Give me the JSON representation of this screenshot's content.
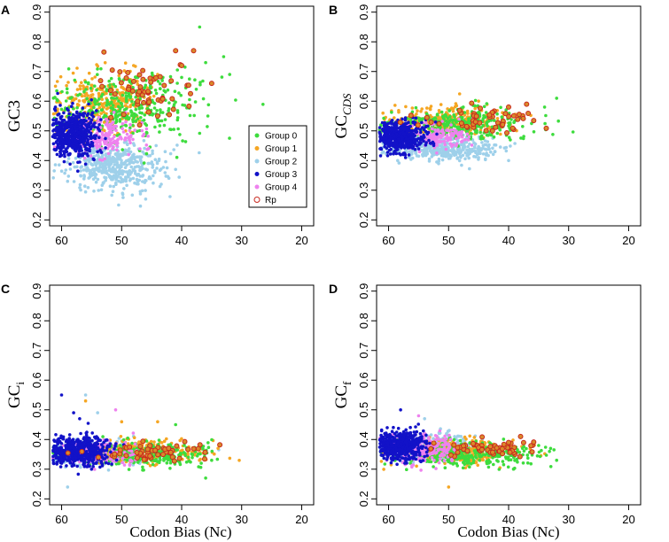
{
  "colors": {
    "Group 0": "#3ddc3d",
    "Group 1": "#f5a623",
    "Group 2": "#9ed0ea",
    "Group 3": "#1212c8",
    "Group 4": "#ee82ee",
    "Rp": "#c8281e"
  },
  "legend": {
    "entries": [
      "Group 0",
      "Group 1",
      "Group 2",
      "Group 3",
      "Group 4",
      "Rp"
    ],
    "placement": "bottom-right of panel A"
  },
  "x_axis_label": "Codon Bias (Nc)",
  "chart_data": [
    {
      "panel": "A",
      "type": "scatter",
      "ylabel": "GC3",
      "ylabel_sub": "",
      "xlabel": "",
      "xlim": [
        62,
        18
      ],
      "ylim": [
        0.18,
        0.92
      ],
      "xticks": [
        "60",
        "50",
        "40",
        "30",
        "20"
      ],
      "yticks": [
        "0.2",
        "0.3",
        "0.4",
        "0.5",
        "0.6",
        "0.7",
        "0.8",
        "0.9"
      ],
      "series": [
        {
          "group": "Group 2",
          "cloud": {
            "x_center": 51,
            "x_sd": 4,
            "y_center": 0.38,
            "y_sd": 0.04,
            "n": 450
          },
          "points": [
            [
              50.5,
              0.25
            ],
            [
              46,
              0.27
            ],
            [
              41,
              0.37
            ],
            [
              59,
              0.33
            ]
          ]
        },
        {
          "group": "Group 1",
          "cloud": {
            "x_center": 53,
            "x_sd": 4,
            "y_center": 0.59,
            "y_sd": 0.05,
            "n": 330
          },
          "points": [
            [
              48,
              0.72
            ],
            [
              44,
              0.69
            ],
            [
              50,
              0.66
            ]
          ]
        },
        {
          "group": "Group 0",
          "cloud": {
            "x_center": 49,
            "x_sd": 6,
            "y_center": 0.58,
            "y_sd": 0.06,
            "n": 360
          },
          "points": [
            [
              37,
              0.85
            ],
            [
              33,
              0.75
            ],
            [
              32,
              0.69
            ],
            [
              36,
              0.73
            ],
            [
              40,
              0.68
            ]
          ]
        },
        {
          "group": "Group 4",
          "cloud": {
            "x_center": 53,
            "x_sd": 3,
            "y_center": 0.48,
            "y_sd": 0.03,
            "n": 200
          },
          "points": []
        },
        {
          "group": "Group 3",
          "cloud": {
            "x_center": 58,
            "x_sd": 2,
            "y_center": 0.49,
            "y_sd": 0.04,
            "n": 520
          },
          "points": []
        },
        {
          "group": "Rp",
          "cloud": {
            "x_center": 46,
            "x_sd": 5,
            "y_center": 0.64,
            "y_sd": 0.05,
            "n": 55
          },
          "points": [
            [
              41,
              0.77
            ],
            [
              38,
              0.77
            ],
            [
              40,
              0.72
            ],
            [
              35,
              0.66
            ],
            [
              47,
              0.52
            ],
            [
              44,
              0.55
            ]
          ]
        }
      ]
    },
    {
      "panel": "B",
      "type": "scatter",
      "ylabel": "GC",
      "ylabel_sub": "CDS",
      "xlabel": "",
      "xlim": [
        62,
        18
      ],
      "ylim": [
        0.18,
        0.92
      ],
      "xticks": [
        "60",
        "50",
        "40",
        "30",
        "20"
      ],
      "yticks": [
        "0.2",
        "0.3",
        "0.4",
        "0.5",
        "0.6",
        "0.7",
        "0.8",
        "0.9"
      ],
      "series": [
        {
          "group": "Group 2",
          "cloud": {
            "x_center": 51,
            "x_sd": 4,
            "y_center": 0.44,
            "y_sd": 0.02,
            "n": 400
          },
          "points": [
            [
              40,
              0.4
            ],
            [
              45,
              0.41
            ]
          ]
        },
        {
          "group": "Group 1",
          "cloud": {
            "x_center": 51,
            "x_sd": 5,
            "y_center": 0.53,
            "y_sd": 0.025,
            "n": 300
          },
          "points": [
            [
              45,
              0.6
            ]
          ]
        },
        {
          "group": "Group 0",
          "cloud": {
            "x_center": 48,
            "x_sd": 6,
            "y_center": 0.52,
            "y_sd": 0.025,
            "n": 320
          },
          "points": [
            [
              32,
              0.61
            ],
            [
              34,
              0.58
            ]
          ]
        },
        {
          "group": "Group 4",
          "cloud": {
            "x_center": 53,
            "x_sd": 3,
            "y_center": 0.48,
            "y_sd": 0.02,
            "n": 180
          },
          "points": []
        },
        {
          "group": "Group 3",
          "cloud": {
            "x_center": 58,
            "x_sd": 2,
            "y_center": 0.48,
            "y_sd": 0.025,
            "n": 500
          },
          "points": []
        },
        {
          "group": "Rp",
          "cloud": {
            "x_center": 44,
            "x_sd": 5,
            "y_center": 0.54,
            "y_sd": 0.02,
            "n": 50
          },
          "points": [
            [
              37,
              0.59
            ],
            [
              40,
              0.58
            ]
          ]
        }
      ]
    },
    {
      "panel": "C",
      "type": "scatter",
      "ylabel": "GC",
      "ylabel_sub": "i",
      "xlabel": "Codon Bias (Nc)",
      "xlim": [
        62,
        18
      ],
      "ylim": [
        0.18,
        0.92
      ],
      "xticks": [
        "60",
        "50",
        "40",
        "30",
        "20"
      ],
      "yticks": [
        "0.2",
        "0.3",
        "0.4",
        "0.5",
        "0.6",
        "0.7",
        "0.8",
        "0.9"
      ],
      "series": [
        {
          "group": "Group 2",
          "cloud": {
            "x_center": 53,
            "x_sd": 4,
            "y_center": 0.35,
            "y_sd": 0.02,
            "n": 350
          },
          "points": [
            [
              56,
              0.55
            ],
            [
              54,
              0.49
            ],
            [
              59,
              0.24
            ]
          ]
        },
        {
          "group": "Group 1",
          "cloud": {
            "x_center": 47,
            "x_sd": 5,
            "y_center": 0.36,
            "y_sd": 0.02,
            "n": 300
          },
          "points": [
            [
              56,
              0.53
            ],
            [
              44,
              0.46
            ],
            [
              50,
              0.46
            ]
          ]
        },
        {
          "group": "Group 0",
          "cloud": {
            "x_center": 47,
            "x_sd": 6,
            "y_center": 0.35,
            "y_sd": 0.02,
            "n": 320
          },
          "points": [
            [
              35,
              0.33
            ],
            [
              36,
              0.27
            ],
            [
              41,
              0.45
            ]
          ]
        },
        {
          "group": "Group 4",
          "cloud": {
            "x_center": 54,
            "x_sd": 3,
            "y_center": 0.35,
            "y_sd": 0.02,
            "n": 180
          },
          "points": [
            [
              51,
              0.5
            ]
          ]
        },
        {
          "group": "Group 3",
          "cloud": {
            "x_center": 57,
            "x_sd": 2.5,
            "y_center": 0.36,
            "y_sd": 0.025,
            "n": 480
          },
          "points": [
            [
              60,
              0.55
            ],
            [
              58,
              0.49
            ],
            [
              57,
              0.47
            ]
          ]
        },
        {
          "group": "Rp",
          "cloud": {
            "x_center": 45,
            "x_sd": 5,
            "y_center": 0.36,
            "y_sd": 0.015,
            "n": 55
          },
          "points": []
        }
      ]
    },
    {
      "panel": "D",
      "type": "scatter",
      "ylabel": "GC",
      "ylabel_sub": "f",
      "xlabel": "Codon Bias (Nc)",
      "xlim": [
        62,
        18
      ],
      "ylim": [
        0.18,
        0.92
      ],
      "xticks": [
        "60",
        "50",
        "40",
        "30",
        "20"
      ],
      "yticks": [
        "0.2",
        "0.3",
        "0.4",
        "0.5",
        "0.6",
        "0.7",
        "0.8",
        "0.9"
      ],
      "series": [
        {
          "group": "Group 2",
          "cloud": {
            "x_center": 53,
            "x_sd": 4,
            "y_center": 0.37,
            "y_sd": 0.02,
            "n": 350
          },
          "points": [
            [
              54,
              0.47
            ]
          ]
        },
        {
          "group": "Group 1",
          "cloud": {
            "x_center": 48,
            "x_sd": 5,
            "y_center": 0.36,
            "y_sd": 0.02,
            "n": 300
          },
          "points": [
            [
              50,
              0.24
            ]
          ]
        },
        {
          "group": "Group 0",
          "cloud": {
            "x_center": 47,
            "x_sd": 6,
            "y_center": 0.35,
            "y_sd": 0.02,
            "n": 320
          },
          "points": [
            [
              33,
              0.37
            ],
            [
              32,
              0.33
            ],
            [
              35,
              0.38
            ]
          ]
        },
        {
          "group": "Group 4",
          "cloud": {
            "x_center": 54,
            "x_sd": 3,
            "y_center": 0.37,
            "y_sd": 0.025,
            "n": 200
          },
          "points": [
            [
              55,
              0.48
            ]
          ]
        },
        {
          "group": "Group 3",
          "cloud": {
            "x_center": 58,
            "x_sd": 2,
            "y_center": 0.38,
            "y_sd": 0.025,
            "n": 480
          },
          "points": [
            [
              58,
              0.5
            ]
          ]
        },
        {
          "group": "Rp",
          "cloud": {
            "x_center": 44,
            "x_sd": 5,
            "y_center": 0.37,
            "y_sd": 0.015,
            "n": 55
          },
          "points": [
            [
              38,
              0.41
            ],
            [
              40,
              0.39
            ]
          ]
        }
      ]
    }
  ]
}
